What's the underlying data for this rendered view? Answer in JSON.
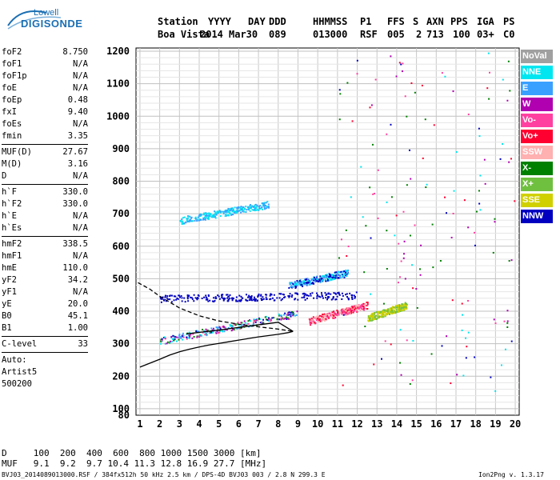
{
  "logo": {
    "line1": "Lowell",
    "line2": "DIGISONDE"
  },
  "header": {
    "row1": [
      "Station",
      "YYYY",
      "DAY",
      "DDD",
      "HHMMSS",
      "P1",
      "FFS",
      "S",
      "AXN",
      "PPS",
      "IGA",
      "PS"
    ],
    "row2": [
      "Boa Vista",
      "2014",
      "Mar30",
      "089",
      "013000",
      "RSF",
      "005",
      "2",
      "713",
      "100",
      "03+",
      "C0"
    ]
  },
  "params": {
    "group1": [
      {
        "name": "foF2",
        "value": "8.750"
      },
      {
        "name": "foF1",
        "value": "N/A"
      },
      {
        "name": "foF1p",
        "value": "N/A"
      },
      {
        "name": "foE",
        "value": "N/A"
      },
      {
        "name": "foEp",
        "value": "0.48"
      },
      {
        "name": "fxI",
        "value": "9.40"
      },
      {
        "name": "foEs",
        "value": "N/A"
      },
      {
        "name": "fmin",
        "value": "3.35"
      }
    ],
    "group2": [
      {
        "name": "MUF(D)",
        "value": "27.67"
      },
      {
        "name": "M(D)",
        "value": "3.16"
      },
      {
        "name": "D",
        "value": "N/A"
      }
    ],
    "group3": [
      {
        "name": "h`F",
        "value": "330.0"
      },
      {
        "name": "h`F2",
        "value": "330.0"
      },
      {
        "name": "h`E",
        "value": "N/A"
      },
      {
        "name": "h`Es",
        "value": "N/A"
      }
    ],
    "group4": [
      {
        "name": "hmF2",
        "value": "338.5"
      },
      {
        "name": "hmF1",
        "value": "N/A"
      },
      {
        "name": "hmE",
        "value": "110.0"
      },
      {
        "name": "yF2",
        "value": "34.2"
      },
      {
        "name": "yF1",
        "value": "N/A"
      },
      {
        "name": "yE",
        "value": "20.0"
      },
      {
        "name": "B0",
        "value": "45.1"
      },
      {
        "name": "B1",
        "value": "1.00"
      }
    ],
    "group5": [
      {
        "name": "C-level",
        "value": "33"
      }
    ],
    "group6": [
      "Auto:",
      "Artist5",
      "500200"
    ]
  },
  "legend": [
    {
      "label": "NoVal",
      "color": "#a0a0a0"
    },
    {
      "label": "NNE",
      "color": "#00e6f0"
    },
    {
      "label": "E",
      "color": "#3aa0ff"
    },
    {
      "label": "W",
      "color": "#b000b0"
    },
    {
      "label": "Vo-",
      "color": "#ff40a0"
    },
    {
      "label": "Vo+",
      "color": "#ff0030"
    },
    {
      "label": "SSW",
      "color": "#ffb0b0"
    },
    {
      "label": "X-",
      "color": "#008000"
    },
    {
      "label": "X+",
      "color": "#70c040"
    },
    {
      "label": "SSE",
      "color": "#d0d000"
    },
    {
      "label": "NNW",
      "color": "#0000c0"
    }
  ],
  "bottom": {
    "row1": "D     100  200  400  600  800 1000 1500 3000 [km]",
    "row2": "MUF   9.1  9.2  9.7 10.4 11.3 12.8 16.9 27.7 [MHz]"
  },
  "footer": {
    "left": "BVJ03_2014089013000.RSF / 384fx512h 50 kHz 2.5 km / DPS-4D BVJ03 003 / 2.8 N 299.3 E",
    "right": "Ion2Png v. 1.3.17"
  },
  "chart_data": {
    "type": "scatter",
    "title": "",
    "xlabel": "",
    "ylabel": "",
    "xlim": [
      0.8,
      20.2
    ],
    "ylim": [
      80,
      1210
    ],
    "xticks": [
      1,
      2,
      3,
      4,
      5,
      6,
      7,
      8,
      9,
      10,
      11,
      12,
      13,
      14,
      15,
      16,
      17,
      18,
      19,
      20
    ],
    "yticks": [
      80,
      100,
      200,
      300,
      400,
      500,
      600,
      700,
      800,
      900,
      1000,
      1100,
      1200
    ],
    "grid": true,
    "series": [
      {
        "color": "#000000",
        "style": "line",
        "x": [
          1.0,
          1.5,
          2.0,
          2.5,
          3.0,
          3.5,
          4.0,
          4.5,
          5.0,
          5.5,
          6.0,
          6.5,
          7.0,
          7.5,
          8.0,
          8.5,
          8.75
        ],
        "y": [
          228,
          240,
          252,
          265,
          275,
          283,
          290,
          296,
          301,
          306,
          311,
          316,
          321,
          325,
          329,
          334,
          338
        ]
      },
      {
        "color": "#000000",
        "style": "line",
        "x": [
          3.35,
          4.0,
          5.0,
          6.0,
          7.0,
          8.0,
          8.75
        ],
        "y": [
          330,
          335,
          342,
          350,
          358,
          366,
          338
        ]
      },
      {
        "color": "#000000",
        "style": "dashed",
        "x": [
          0.9,
          1.5,
          2.0,
          2.5,
          3.0,
          3.5,
          4.0,
          4.5,
          5.0,
          5.5,
          6.0,
          7.0,
          8.0,
          8.75
        ],
        "y": [
          488,
          468,
          446,
          428,
          410,
          398,
          386,
          378,
          370,
          365,
          360,
          352,
          345,
          338
        ]
      }
    ],
    "traces": [
      {
        "name": "F trace",
        "colors": [
          "#3aa0ff",
          "#00e6f0",
          "#b000b0",
          "#0000c0",
          "#ff40a0",
          "#008000"
        ],
        "x": [
          2.0,
          9.0
        ],
        "y": [
          310,
          395
        ]
      },
      {
        "name": "blue band",
        "colors": [
          "#0000c0"
        ],
        "x": [
          2.0,
          12.0
        ],
        "y": [
          440,
          450
        ]
      },
      {
        "name": "2nd hop",
        "colors": [
          "#00e6f0",
          "#3aa0ff"
        ],
        "x": [
          3.0,
          7.5
        ],
        "y": [
          680,
          730
        ]
      },
      {
        "name": "upper cluster",
        "colors": [
          "#3aa0ff",
          "#00e6f0",
          "#0000c0"
        ],
        "x": [
          8.5,
          11.5
        ],
        "y": [
          480,
          520
        ]
      },
      {
        "name": "pink cluster",
        "colors": [
          "#ff40a0",
          "#ffb0b0",
          "#ff0030"
        ],
        "x": [
          9.5,
          12.5
        ],
        "y": [
          370,
          420
        ]
      },
      {
        "name": "yellow cluster",
        "colors": [
          "#d0d000",
          "#70c040"
        ],
        "x": [
          12.5,
          14.5
        ],
        "y": [
          380,
          420
        ]
      }
    ]
  }
}
